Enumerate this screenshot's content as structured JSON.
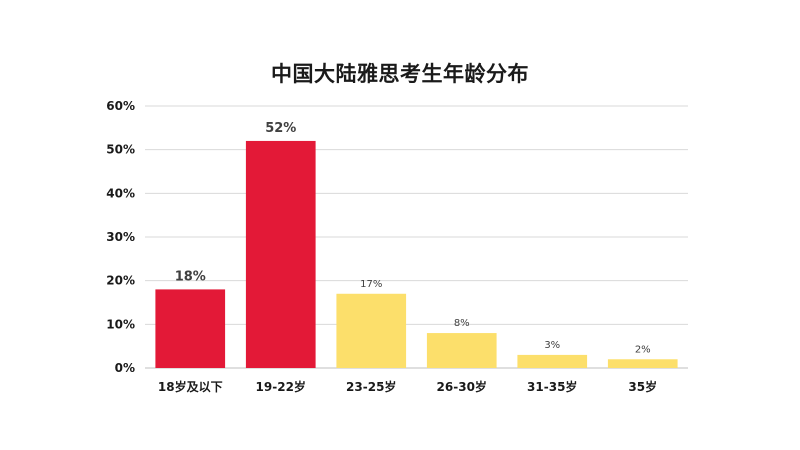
{
  "chart_data": {
    "type": "bar",
    "title": "中国大陆雅思考生年龄分布",
    "categories": [
      "18岁及以下",
      "19-22岁",
      "23-25岁",
      "26-30岁",
      "31-35岁",
      "35岁"
    ],
    "values": [
      18,
      52,
      17,
      8,
      3,
      2
    ],
    "data_labels": [
      "18%",
      "52%",
      "17%",
      "8%",
      "3%",
      "2%"
    ],
    "y_ticks": [
      "0%",
      "10%",
      "20%",
      "30%",
      "40%",
      "50%",
      "60%"
    ],
    "ylim": [
      0,
      60
    ],
    "grid": true,
    "colors": [
      "#e31937",
      "#e31937",
      "#fcdf6b",
      "#fcdf6b",
      "#fcdf6b",
      "#fcdf6b"
    ],
    "emphasized_categories": [
      0,
      1
    ]
  }
}
